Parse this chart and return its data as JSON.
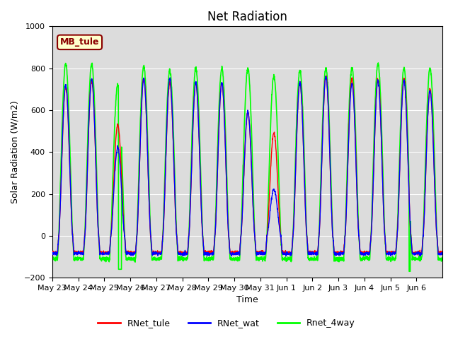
{
  "title": "Net Radiation",
  "ylabel": "Solar Radiation (W/m2)",
  "xlabel": "Time",
  "ylim": [
    -200,
    1000
  ],
  "yticks": [
    -200,
    0,
    200,
    400,
    600,
    800,
    1000
  ],
  "bg_color": "#dcdcdc",
  "fig_bg": "#ffffff",
  "annotation_text": "MB_tule",
  "annotation_facecolor": "#ffffcc",
  "annotation_edgecolor": "#8b0000",
  "lines": [
    {
      "label": "RNet_tule",
      "color": "red",
      "lw": 1.0
    },
    {
      "label": "RNet_wat",
      "color": "blue",
      "lw": 1.0
    },
    {
      "label": "Rnet_4way",
      "color": "lime",
      "lw": 1.2
    }
  ],
  "xtick_labels": [
    "May 23",
    "May 24",
    "May 25",
    "May 26",
    "May 27",
    "May 28",
    "May 29",
    "May 30",
    "May 31",
    "Jun 1",
    "Jun 2",
    "Jun 3",
    "Jun 4",
    "Jun 5",
    "Jun 6"
  ],
  "num_days": 15,
  "pts_per_day": 144,
  "night_val_tule": -80,
  "night_val_wat": -85,
  "night_val_4way": -110,
  "day_peaks_tule": [
    710,
    740,
    530,
    755,
    730,
    730,
    730,
    590,
    490,
    730,
    760,
    750,
    750,
    750,
    700
  ],
  "day_peaks_wat": [
    720,
    750,
    420,
    750,
    750,
    730,
    730,
    590,
    220,
    730,
    760,
    730,
    740,
    740,
    690
  ],
  "day_peaks_4way": [
    820,
    820,
    720,
    810,
    790,
    800,
    800,
    800,
    760,
    790,
    800,
    800,
    820,
    800,
    800
  ],
  "title_fontsize": 12,
  "label_fontsize": 9,
  "tick_fontsize": 8,
  "legend_fontsize": 9
}
